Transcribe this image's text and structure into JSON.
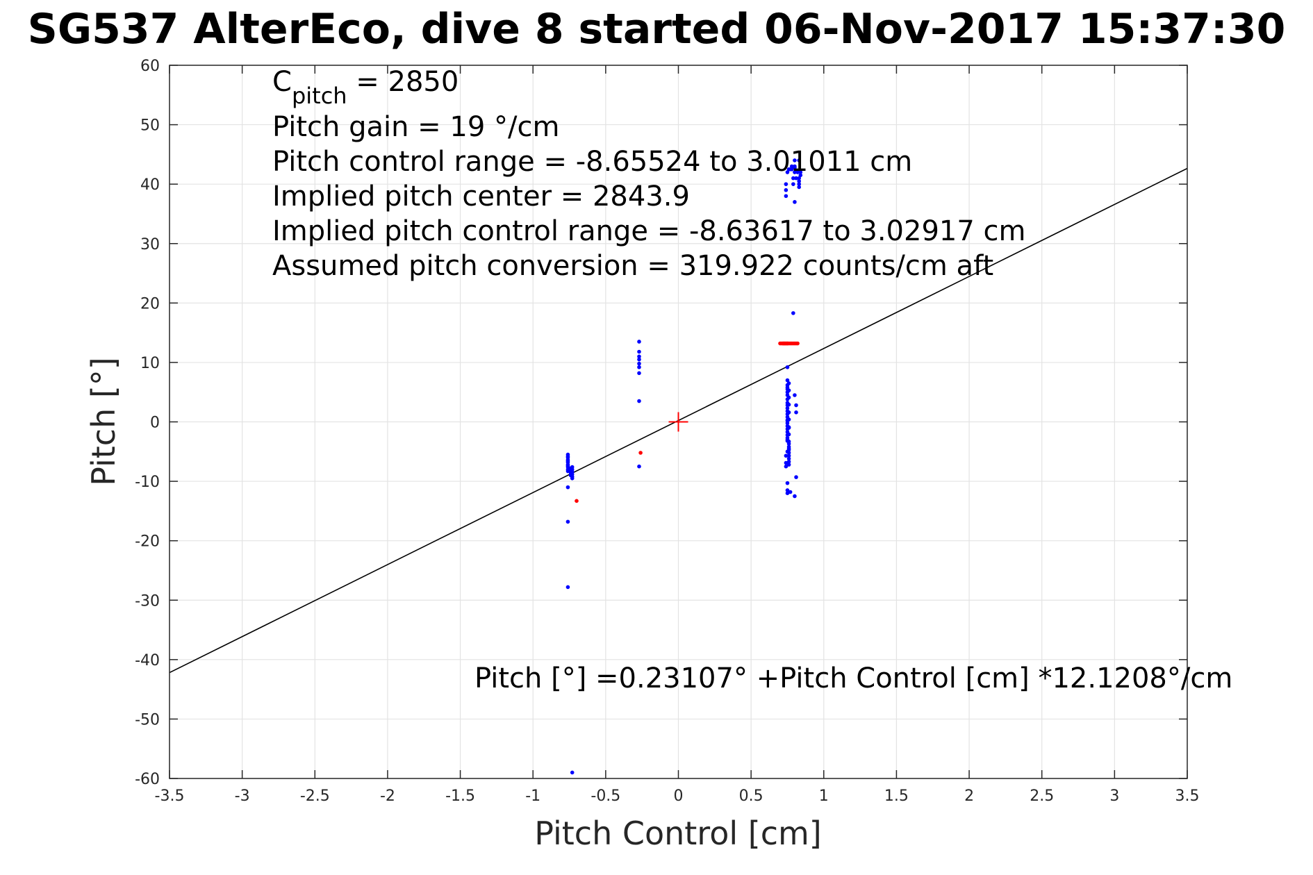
{
  "chart_data": {
    "type": "scatter",
    "title": "SG537 AlterEco, dive 8 started 06-Nov-2017 15:37:30",
    "xlabel": "Pitch Control [cm]",
    "ylabel": "Pitch [°]",
    "xlim": [
      -3.5,
      3.5
    ],
    "ylim": [
      -60,
      60
    ],
    "xticks": [
      -3.5,
      -3,
      -2.5,
      -2,
      -1.5,
      -1,
      -0.5,
      0,
      0.5,
      1,
      1.5,
      2,
      2.5,
      3,
      3.5
    ],
    "xtick_labels": [
      "-3.5",
      "-3",
      "-2.5",
      "-2",
      "-1.5",
      "-1",
      "-0.5",
      "0",
      "0.5",
      "1",
      "1.5",
      "2",
      "2.5",
      "3",
      "3.5"
    ],
    "yticks": [
      -60,
      -50,
      -40,
      -30,
      -20,
      -10,
      0,
      10,
      20,
      30,
      40,
      50,
      60
    ],
    "ytick_labels": [
      "-60",
      "-50",
      "-40",
      "-30",
      "-20",
      "-10",
      "0",
      "10",
      "20",
      "30",
      "40",
      "50",
      "60"
    ],
    "grid": true,
    "annotations": {
      "c_pitch_symbol": "C",
      "c_pitch_subscript": "pitch",
      "c_pitch_value": " = 2850",
      "pitch_gain": "Pitch gain = 19 °/cm",
      "control_range": "Pitch control range = -8.65524 to 3.01011 cm",
      "implied_center": "Implied pitch center = 2843.9",
      "implied_range": "Implied pitch control range = -8.63617 to 3.02917 cm",
      "conversion": "Assumed pitch conversion = 319.922 counts/cm aft",
      "fit_equation": "Pitch [°] =0.23107° +Pitch Control [cm] *12.1208°/cm"
    },
    "colors": {
      "blue_points": "#0000ff",
      "red_points": "#ff0000",
      "fit_line": "#000000",
      "center_marker": "#ff0000"
    },
    "fit_line": {
      "x": [
        -3.5,
        3.5
      ],
      "y": [
        -42.19,
        42.65
      ]
    },
    "center_marker": {
      "x": 0,
      "y": 0
    },
    "series": [
      {
        "color": "blue",
        "x": [
          -0.76,
          -0.76,
          -0.76,
          -0.76,
          -0.76,
          -0.76,
          -0.76,
          -0.76,
          -0.76,
          -0.76,
          -0.76,
          -0.75,
          -0.75,
          -0.74,
          -0.74,
          -0.74,
          -0.73,
          -0.73,
          -0.73,
          -0.73,
          -0.73,
          -0.73,
          -0.76,
          -0.76,
          -0.76,
          -0.73,
          -0.27,
          -0.27,
          -0.27,
          -0.27,
          -0.27,
          -0.27,
          -0.27,
          -0.27,
          -0.27,
          0.75,
          0.75,
          0.75,
          0.75,
          0.75,
          0.75,
          0.75,
          0.75,
          0.75,
          0.75,
          0.75,
          0.75,
          0.75,
          0.75,
          0.75,
          0.75,
          0.75,
          0.75,
          0.75,
          0.75,
          0.75,
          0.75,
          0.76,
          0.76,
          0.76,
          0.76,
          0.76,
          0.76,
          0.76,
          0.76,
          0.76,
          0.76,
          0.76,
          0.76,
          0.76,
          0.76,
          0.76,
          0.76,
          0.76,
          0.76,
          0.74,
          0.74,
          0.74,
          0.75,
          0.75,
          0.75,
          0.77,
          0.75,
          0.76,
          0.75,
          0.75,
          0.79,
          0.8,
          0.81,
          0.81,
          0.81,
          0.8,
          0.74,
          0.74,
          0.74,
          0.75,
          0.76,
          0.77,
          0.78,
          0.78,
          0.79,
          0.79,
          0.8,
          0.8,
          0.8,
          0.8,
          0.81,
          0.82,
          0.83,
          0.83,
          0.83,
          0.83,
          0.84,
          0.84,
          0.83,
          0.8
        ],
        "y": [
          -5.5,
          -6.0,
          -6.4,
          -6.8,
          -7.2,
          -7.6,
          -8.0,
          -8.3,
          -5.8,
          -6.6,
          -7.4,
          -7.8,
          -8.1,
          -8.5,
          -8.8,
          -9.0,
          -7.6,
          -8.0,
          -8.4,
          -8.8,
          -9.2,
          -9.5,
          -11.0,
          -16.8,
          -27.8,
          -59.0,
          13.5,
          11.8,
          11.0,
          10.5,
          9.8,
          9.2,
          8.2,
          3.5,
          -7.5,
          9.2,
          7.0,
          6.2,
          5.8,
          5.5,
          5.0,
          4.5,
          3.8,
          3.2,
          2.8,
          2.3,
          1.8,
          1.3,
          0.8,
          0.3,
          -0.2,
          -0.7,
          -1.2,
          -1.7,
          -2.2,
          -2.7,
          -3.2,
          -3.7,
          -4.2,
          -4.7,
          -5.2,
          -5.7,
          -6.2,
          -6.7,
          -7.2,
          6.5,
          5.3,
          4.1,
          2.9,
          1.6,
          0.4,
          -0.9,
          -2.1,
          -3.3,
          -4.5,
          -5.7,
          -6.9,
          -7.5,
          -10.3,
          -11.5,
          -12.0,
          -11.8,
          0.2,
          -1.0,
          -3.0,
          -5.0,
          18.3,
          4.5,
          2.8,
          1.6,
          -9.3,
          -12.5,
          38.0,
          39.0,
          40.0,
          42.0,
          42.5,
          42.5,
          43.0,
          42.5,
          40.0,
          41.0,
          43.0,
          44.0,
          42.0,
          37.0,
          41.0,
          42.0,
          39.5,
          40.0,
          40.5,
          41.0,
          41.5,
          42.0,
          44.0,
          42.8
        ]
      },
      {
        "color": "red",
        "x": [
          0.7,
          0.71,
          0.72,
          0.72,
          0.73,
          0.73,
          0.74,
          0.74,
          0.75,
          0.75,
          0.76,
          0.77,
          0.78,
          0.79,
          0.8,
          0.81,
          0.82,
          -0.7,
          -0.26
        ],
        "y": [
          13.2,
          13.2,
          13.2,
          13.2,
          13.2,
          13.2,
          13.2,
          13.2,
          13.2,
          13.2,
          13.2,
          13.2,
          13.2,
          13.2,
          13.2,
          13.2,
          13.2,
          -13.3,
          -5.2
        ]
      }
    ]
  }
}
